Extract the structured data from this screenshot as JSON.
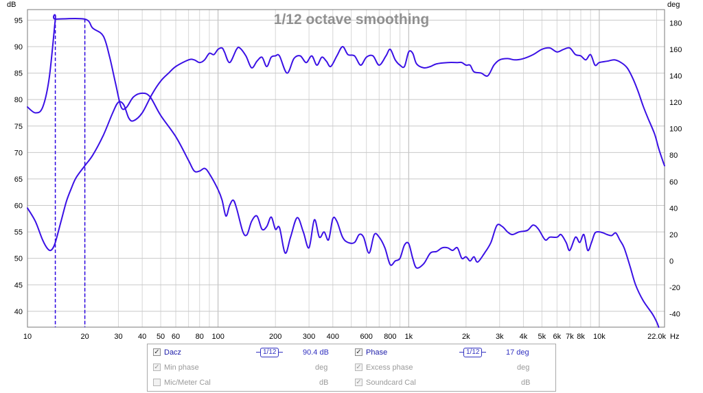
{
  "chart_data": {
    "type": "line",
    "title": "1/12 octave smoothing",
    "left_axis_unit": "dB",
    "right_axis_unit": "deg",
    "x_unit": "Hz",
    "x_scale": "log",
    "xlim": [
      10,
      22000
    ],
    "ylim_left": [
      37,
      97
    ],
    "ylim_right": [
      -50,
      190
    ],
    "y_ticks_left": [
      40,
      45,
      50,
      55,
      60,
      65,
      70,
      75,
      80,
      85,
      90,
      95
    ],
    "y_ticks_right": [
      -40,
      -20,
      0,
      20,
      40,
      60,
      80,
      100,
      120,
      140,
      160,
      180
    ],
    "x_tick_labels": [
      {
        "f": 10,
        "label": "10"
      },
      {
        "f": 20,
        "label": "20"
      },
      {
        "f": 30,
        "label": "30"
      },
      {
        "f": 40,
        "label": "40"
      },
      {
        "f": 50,
        "label": "50"
      },
      {
        "f": 60,
        "label": "60"
      },
      {
        "f": 80,
        "label": "80"
      },
      {
        "f": 100,
        "label": "100"
      },
      {
        "f": 200,
        "label": "200"
      },
      {
        "f": 300,
        "label": "300"
      },
      {
        "f": 400,
        "label": "400"
      },
      {
        "f": 600,
        "label": "600"
      },
      {
        "f": 800,
        "label": "800"
      },
      {
        "f": 1000,
        "label": "1k"
      },
      {
        "f": 2000,
        "label": "2k"
      },
      {
        "f": 3000,
        "label": "3k"
      },
      {
        "f": 4000,
        "label": "4k"
      },
      {
        "f": 5000,
        "label": "5k"
      },
      {
        "f": 6000,
        "label": "6k"
      },
      {
        "f": 7000,
        "label": "7k"
      },
      {
        "f": 8000,
        "label": "8k"
      },
      {
        "f": 10000,
        "label": "10k"
      },
      {
        "f": 22000,
        "label": "22.0k"
      }
    ],
    "grid": true,
    "series": [
      {
        "name": "Dacz",
        "axis": "left",
        "color": "#3a10e5",
        "points": [
          [
            10,
            78.6
          ],
          [
            11,
            77.5
          ],
          [
            12,
            78.5
          ],
          [
            13,
            84
          ],
          [
            14,
            95.2
          ],
          [
            14.05,
            95.2
          ],
          [
            20,
            95.2
          ],
          [
            22,
            93.5
          ],
          [
            25,
            92
          ],
          [
            27,
            88
          ],
          [
            29,
            83
          ],
          [
            31,
            78.6
          ],
          [
            33,
            78.5
          ],
          [
            36,
            80.5
          ],
          [
            40,
            81.2
          ],
          [
            44,
            80.5
          ],
          [
            50,
            77
          ],
          [
            60,
            73
          ],
          [
            70,
            68.5
          ],
          [
            75,
            66.5
          ],
          [
            80,
            66.5
          ],
          [
            85,
            67
          ],
          [
            90,
            66
          ],
          [
            100,
            63
          ],
          [
            105,
            61
          ],
          [
            110,
            58
          ],
          [
            115,
            60
          ],
          [
            120,
            61
          ],
          [
            125,
            59.5
          ],
          [
            135,
            55
          ],
          [
            142,
            54.5
          ],
          [
            150,
            57
          ],
          [
            160,
            58
          ],
          [
            170,
            55.5
          ],
          [
            180,
            56
          ],
          [
            190,
            57.8
          ],
          [
            200,
            55.5
          ],
          [
            210,
            55.8
          ],
          [
            225,
            51
          ],
          [
            240,
            54
          ],
          [
            260,
            57.7
          ],
          [
            280,
            55
          ],
          [
            300,
            52
          ],
          [
            320,
            57.3
          ],
          [
            340,
            54
          ],
          [
            360,
            55
          ],
          [
            380,
            53.5
          ],
          [
            400,
            57.5
          ],
          [
            420,
            57
          ],
          [
            450,
            54
          ],
          [
            480,
            53
          ],
          [
            520,
            53
          ],
          [
            550,
            54.5
          ],
          [
            580,
            54
          ],
          [
            620,
            51
          ],
          [
            660,
            54.5
          ],
          [
            700,
            54
          ],
          [
            750,
            52
          ],
          [
            800,
            48.8
          ],
          [
            850,
            49.5
          ],
          [
            900,
            50
          ],
          [
            950,
            52.5
          ],
          [
            1000,
            52.8
          ],
          [
            1050,
            50
          ],
          [
            1100,
            48.2
          ],
          [
            1200,
            49
          ],
          [
            1300,
            51
          ],
          [
            1400,
            51.3
          ],
          [
            1500,
            52
          ],
          [
            1600,
            52
          ],
          [
            1700,
            51.5
          ],
          [
            1800,
            52
          ],
          [
            1900,
            50
          ],
          [
            2000,
            50.3
          ],
          [
            2100,
            49.5
          ],
          [
            2200,
            50.3
          ],
          [
            2300,
            49.3
          ],
          [
            2500,
            51
          ],
          [
            2700,
            53
          ],
          [
            2900,
            56.2
          ],
          [
            3100,
            56
          ],
          [
            3300,
            55
          ],
          [
            3500,
            54.5
          ],
          [
            3800,
            55
          ],
          [
            4200,
            55.3
          ],
          [
            4500,
            56.3
          ],
          [
            4800,
            55.5
          ],
          [
            5200,
            53.5
          ],
          [
            5500,
            54
          ],
          [
            6000,
            54
          ],
          [
            6300,
            54.5
          ],
          [
            6700,
            53
          ],
          [
            7000,
            51.5
          ],
          [
            7500,
            54
          ],
          [
            7900,
            53
          ],
          [
            8300,
            54.5
          ],
          [
            8700,
            51.5
          ],
          [
            9100,
            53
          ],
          [
            9500,
            54.8
          ],
          [
            10000,
            55
          ],
          [
            10500,
            54.8
          ],
          [
            11000,
            54.5
          ],
          [
            11600,
            54.3
          ],
          [
            12200,
            54.8
          ],
          [
            12800,
            53.5
          ],
          [
            13500,
            52
          ],
          [
            14500,
            48.5
          ],
          [
            15500,
            45
          ],
          [
            17000,
            42
          ],
          [
            19000,
            39.5
          ],
          [
            20000,
            38
          ],
          [
            20500,
            37
          ]
        ]
      },
      {
        "name": "Phase",
        "axis": "right",
        "color": "#3a10e5",
        "points": [
          [
            10,
            40
          ],
          [
            11,
            30
          ],
          [
            12,
            16
          ],
          [
            12.8,
            9
          ],
          [
            13.4,
            8.5
          ],
          [
            14,
            14
          ],
          [
            15,
            30
          ],
          [
            16,
            45
          ],
          [
            17,
            55
          ],
          [
            18,
            63
          ],
          [
            20,
            72
          ],
          [
            22,
            80
          ],
          [
            25,
            95
          ],
          [
            28,
            112
          ],
          [
            30,
            120
          ],
          [
            32,
            118
          ],
          [
            34,
            108
          ],
          [
            36,
            106
          ],
          [
            40,
            112
          ],
          [
            45,
            126
          ],
          [
            50,
            136
          ],
          [
            55,
            142
          ],
          [
            60,
            147
          ],
          [
            70,
            152
          ],
          [
            75,
            152
          ],
          [
            80,
            150
          ],
          [
            85,
            152
          ],
          [
            90,
            157
          ],
          [
            95,
            156
          ],
          [
            100,
            160
          ],
          [
            105,
            161
          ],
          [
            108,
            158
          ],
          [
            115,
            150
          ],
          [
            125,
            160
          ],
          [
            130,
            161
          ],
          [
            140,
            155
          ],
          [
            150,
            146
          ],
          [
            160,
            151
          ],
          [
            170,
            154
          ],
          [
            180,
            147
          ],
          [
            190,
            154
          ],
          [
            200,
            155
          ],
          [
            210,
            155
          ],
          [
            230,
            142
          ],
          [
            250,
            153
          ],
          [
            270,
            155
          ],
          [
            290,
            150
          ],
          [
            310,
            155
          ],
          [
            330,
            148
          ],
          [
            350,
            154
          ],
          [
            370,
            151
          ],
          [
            390,
            147
          ],
          [
            420,
            155
          ],
          [
            450,
            162
          ],
          [
            480,
            156
          ],
          [
            520,
            155
          ],
          [
            560,
            148
          ],
          [
            600,
            154
          ],
          [
            650,
            155
          ],
          [
            700,
            148
          ],
          [
            760,
            155
          ],
          [
            800,
            160
          ],
          [
            850,
            152
          ],
          [
            900,
            148
          ],
          [
            950,
            147
          ],
          [
            1000,
            158
          ],
          [
            1050,
            157
          ],
          [
            1100,
            149
          ],
          [
            1200,
            146
          ],
          [
            1300,
            147
          ],
          [
            1400,
            149
          ],
          [
            1600,
            150
          ],
          [
            1800,
            150
          ],
          [
            1900,
            150
          ],
          [
            2000,
            148
          ],
          [
            2100,
            148
          ],
          [
            2200,
            143
          ],
          [
            2400,
            142
          ],
          [
            2600,
            140
          ],
          [
            2800,
            148
          ],
          [
            3000,
            152
          ],
          [
            3300,
            153
          ],
          [
            3600,
            152
          ],
          [
            4000,
            153
          ],
          [
            4500,
            156
          ],
          [
            5000,
            160
          ],
          [
            5500,
            161
          ],
          [
            6000,
            158
          ],
          [
            6500,
            160
          ],
          [
            7000,
            161
          ],
          [
            7500,
            156
          ],
          [
            8000,
            155
          ],
          [
            8500,
            152
          ],
          [
            9000,
            156
          ],
          [
            9500,
            148
          ],
          [
            10000,
            150
          ],
          [
            11000,
            151
          ],
          [
            12000,
            152
          ],
          [
            13000,
            150
          ],
          [
            14000,
            146
          ],
          [
            15000,
            138
          ],
          [
            16000,
            128
          ],
          [
            17000,
            117
          ],
          [
            18000,
            108
          ],
          [
            19500,
            96
          ],
          [
            20500,
            85
          ],
          [
            21500,
            76
          ],
          [
            22000,
            72
          ]
        ]
      }
    ],
    "markers": [
      {
        "axis": "left",
        "x": 14,
        "y_top": 95.2,
        "color": "#2a00e0",
        "style": "dashed"
      },
      {
        "axis": "left",
        "x": 20,
        "y_top": 95.2,
        "color": "#2a00e0",
        "style": "dashed"
      }
    ]
  },
  "legend": {
    "rows": [
      {
        "left": {
          "label": "Dacz",
          "checked": true,
          "active": true,
          "smoothing": "1/12",
          "value": "90.4 dB"
        },
        "right": {
          "label": "Phase",
          "checked": true,
          "active": true,
          "smoothing": "1/12",
          "value": "17 deg"
        }
      },
      {
        "left": {
          "label": "Min phase",
          "checked": true,
          "active": false,
          "value": "deg"
        },
        "right": {
          "label": "Excess phase",
          "checked": true,
          "active": false,
          "value": "deg"
        }
      },
      {
        "left": {
          "label": "Mic/Meter Cal",
          "checked": false,
          "active": false,
          "value": "dB"
        },
        "right": {
          "label": "Soundcard Cal",
          "checked": true,
          "active": false,
          "value": "dB"
        }
      }
    ]
  }
}
